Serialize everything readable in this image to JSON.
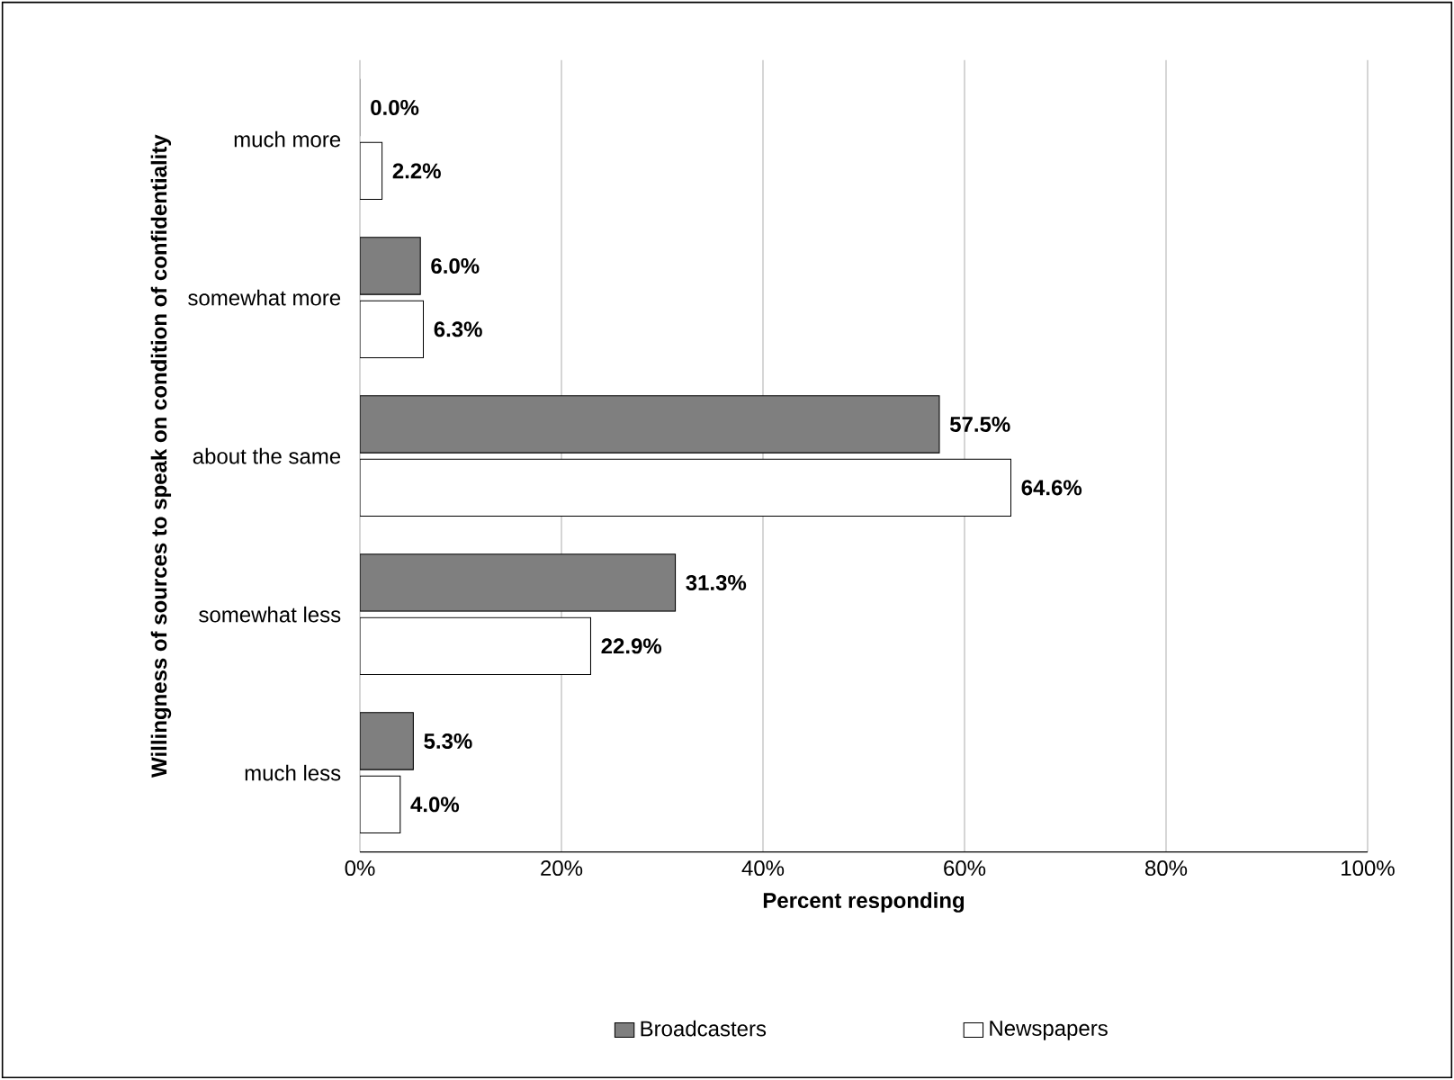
{
  "chart_data": {
    "type": "bar",
    "orientation": "horizontal",
    "xlabel": "Percent responding",
    "ylabel": "Willingness of sources to speak on condition of confidentiality",
    "categories": [
      "much more",
      "somewhat more",
      "about the same",
      "somewhat less",
      "much less"
    ],
    "series": [
      {
        "name": "Broadcasters",
        "color": "#7f7f7f",
        "values": [
          0.0,
          6.0,
          57.5,
          31.3,
          5.3
        ],
        "value_labels": [
          "0.0%",
          "6.0%",
          "57.5%",
          "31.3%",
          "5.3%"
        ]
      },
      {
        "name": "Newspapers",
        "color": "#ffffff",
        "values": [
          2.2,
          6.3,
          64.6,
          22.9,
          4.0
        ],
        "value_labels": [
          "2.2%",
          "6.3%",
          "64.6%",
          "22.9%",
          "4.0%"
        ]
      }
    ],
    "xlim": [
      0,
      100
    ],
    "xticks": [
      {
        "value": 0,
        "label": "0%"
      },
      {
        "value": 20,
        "label": "20%"
      },
      {
        "value": 40,
        "label": "40%"
      },
      {
        "value": 60,
        "label": "60%"
      },
      {
        "value": 80,
        "label": "80%"
      },
      {
        "value": 100,
        "label": "100%"
      }
    ],
    "grid": "x",
    "legend": "bottom"
  }
}
